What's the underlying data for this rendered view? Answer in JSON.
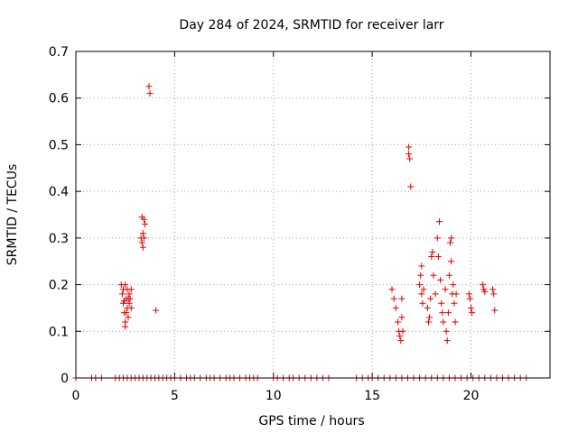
{
  "chart_data": {
    "type": "scatter",
    "title": "Day 284 of 2024, SRMTID for receiver larr",
    "xlabel": "GPS time / hours",
    "ylabel": "SRMTID / TECUs",
    "xlim": [
      0,
      24
    ],
    "ylim": [
      0,
      0.7
    ],
    "xticks": [
      0,
      5,
      10,
      15,
      20
    ],
    "xtick_labels": [
      "0",
      "5",
      "10",
      "15",
      "20"
    ],
    "yticks": [
      0,
      0.1,
      0.2,
      0.3,
      0.4,
      0.5,
      0.6,
      0.7
    ],
    "ytick_labels": [
      "0",
      "0.1",
      "0.2",
      "0.3",
      "0.4",
      "0.5",
      "0.6",
      "0.7"
    ],
    "grid": true,
    "marker": "+",
    "color": "#e00000",
    "series": [
      {
        "name": "SRMTID",
        "points": [
          [
            0.0,
            0
          ],
          [
            0.8,
            0
          ],
          [
            1.0,
            0
          ],
          [
            1.3,
            0
          ],
          [
            2.0,
            0
          ],
          [
            2.2,
            0
          ],
          [
            2.4,
            0
          ],
          [
            2.6,
            0
          ],
          [
            2.8,
            0
          ],
          [
            3.0,
            0
          ],
          [
            3.2,
            0
          ],
          [
            3.4,
            0
          ],
          [
            3.6,
            0
          ],
          [
            3.8,
            0
          ],
          [
            4.0,
            0
          ],
          [
            4.2,
            0
          ],
          [
            4.4,
            0
          ],
          [
            4.6,
            0
          ],
          [
            4.8,
            0
          ],
          [
            5.0,
            0
          ],
          [
            5.3,
            0
          ],
          [
            5.6,
            0
          ],
          [
            5.8,
            0
          ],
          [
            6.0,
            0
          ],
          [
            6.3,
            0
          ],
          [
            6.6,
            0
          ],
          [
            6.8,
            0
          ],
          [
            7.0,
            0
          ],
          [
            7.3,
            0
          ],
          [
            7.6,
            0
          ],
          [
            7.8,
            0
          ],
          [
            8.0,
            0
          ],
          [
            8.3,
            0
          ],
          [
            8.6,
            0
          ],
          [
            8.8,
            0
          ],
          [
            9.0,
            0
          ],
          [
            9.2,
            0
          ],
          [
            10.0,
            0
          ],
          [
            10.2,
            0
          ],
          [
            10.5,
            0
          ],
          [
            10.8,
            0
          ],
          [
            11.0,
            0
          ],
          [
            11.3,
            0
          ],
          [
            11.6,
            0
          ],
          [
            11.9,
            0
          ],
          [
            12.2,
            0
          ],
          [
            12.5,
            0
          ],
          [
            12.8,
            0
          ],
          [
            14.2,
            0
          ],
          [
            14.5,
            0
          ],
          [
            14.8,
            0
          ],
          [
            15.0,
            0
          ],
          [
            15.3,
            0
          ],
          [
            15.6,
            0
          ],
          [
            15.9,
            0
          ],
          [
            16.2,
            0
          ],
          [
            16.5,
            0
          ],
          [
            16.8,
            0
          ],
          [
            17.1,
            0
          ],
          [
            17.4,
            0
          ],
          [
            17.7,
            0
          ],
          [
            18.0,
            0
          ],
          [
            18.3,
            0
          ],
          [
            18.6,
            0
          ],
          [
            18.9,
            0
          ],
          [
            19.2,
            0
          ],
          [
            19.5,
            0
          ],
          [
            19.8,
            0
          ],
          [
            20.1,
            0
          ],
          [
            20.4,
            0
          ],
          [
            20.7,
            0
          ],
          [
            21.0,
            0
          ],
          [
            21.3,
            0
          ],
          [
            21.6,
            0
          ],
          [
            21.9,
            0
          ],
          [
            22.2,
            0
          ],
          [
            22.5,
            0
          ],
          [
            22.8,
            0
          ],
          [
            2.3,
            0.2
          ],
          [
            2.35,
            0.18
          ],
          [
            2.4,
            0.16
          ],
          [
            2.45,
            0.14
          ],
          [
            2.5,
            0.12
          ],
          [
            2.5,
            0.11
          ],
          [
            2.55,
            0.17
          ],
          [
            2.6,
            0.19
          ],
          [
            2.6,
            0.15
          ],
          [
            2.65,
            0.13
          ],
          [
            2.7,
            0.18
          ],
          [
            2.7,
            0.16
          ],
          [
            2.75,
            0.17
          ],
          [
            2.8,
            0.19
          ],
          [
            2.8,
            0.15
          ],
          [
            2.4,
            0.19
          ],
          [
            2.5,
            0.2
          ],
          [
            2.55,
            0.14
          ],
          [
            2.65,
            0.17
          ],
          [
            2.45,
            0.165
          ],
          [
            3.3,
            0.3
          ],
          [
            3.35,
            0.29
          ],
          [
            3.4,
            0.28
          ],
          [
            3.4,
            0.31
          ],
          [
            3.45,
            0.34
          ],
          [
            3.5,
            0.33
          ],
          [
            3.45,
            0.3
          ],
          [
            3.35,
            0.345
          ],
          [
            3.7,
            0.625
          ],
          [
            3.75,
            0.61
          ],
          [
            4.05,
            0.145
          ],
          [
            16.0,
            0.19
          ],
          [
            16.1,
            0.17
          ],
          [
            16.2,
            0.15
          ],
          [
            16.3,
            0.12
          ],
          [
            16.35,
            0.1
          ],
          [
            16.4,
            0.09
          ],
          [
            16.45,
            0.08
          ],
          [
            16.5,
            0.13
          ],
          [
            16.5,
            0.17
          ],
          [
            16.55,
            0.1
          ],
          [
            16.85,
            0.495
          ],
          [
            16.85,
            0.48
          ],
          [
            16.9,
            0.47
          ],
          [
            16.95,
            0.41
          ],
          [
            17.4,
            0.2
          ],
          [
            17.45,
            0.22
          ],
          [
            17.5,
            0.18
          ],
          [
            17.5,
            0.24
          ],
          [
            17.55,
            0.16
          ],
          [
            17.6,
            0.19
          ],
          [
            17.8,
            0.15
          ],
          [
            17.85,
            0.12
          ],
          [
            17.9,
            0.13
          ],
          [
            17.95,
            0.17
          ],
          [
            18.0,
            0.26
          ],
          [
            18.05,
            0.27
          ],
          [
            18.1,
            0.22
          ],
          [
            18.2,
            0.18
          ],
          [
            18.3,
            0.3
          ],
          [
            18.35,
            0.26
          ],
          [
            18.4,
            0.335
          ],
          [
            18.45,
            0.21
          ],
          [
            18.5,
            0.16
          ],
          [
            18.55,
            0.14
          ],
          [
            18.6,
            0.12
          ],
          [
            18.7,
            0.19
          ],
          [
            18.75,
            0.1
          ],
          [
            18.8,
            0.08
          ],
          [
            18.85,
            0.14
          ],
          [
            18.9,
            0.22
          ],
          [
            18.95,
            0.29
          ],
          [
            19.0,
            0.3
          ],
          [
            19.0,
            0.25
          ],
          [
            19.05,
            0.18
          ],
          [
            19.1,
            0.2
          ],
          [
            19.15,
            0.16
          ],
          [
            19.2,
            0.12
          ],
          [
            19.25,
            0.18
          ],
          [
            19.9,
            0.18
          ],
          [
            19.95,
            0.17
          ],
          [
            20.0,
            0.15
          ],
          [
            20.05,
            0.14
          ],
          [
            20.6,
            0.2
          ],
          [
            20.65,
            0.19
          ],
          [
            20.7,
            0.185
          ],
          [
            21.1,
            0.19
          ],
          [
            21.15,
            0.18
          ],
          [
            21.2,
            0.145
          ]
        ]
      }
    ]
  }
}
